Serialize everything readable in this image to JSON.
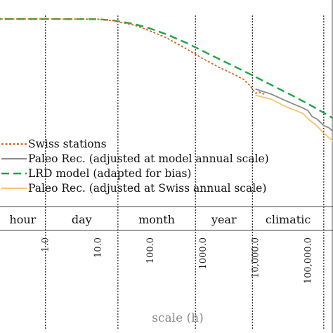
{
  "chart_data": {
    "type": "line",
    "title": "",
    "xlabel": "scale (h)",
    "ylabel": "",
    "x_scale": "log",
    "xlim": [
      0.1,
      300000
    ],
    "ylim": [
      0,
      1
    ],
    "x_ticks": [
      "1.0",
      "10.0",
      "100.0",
      "1000.0",
      "10,000.0",
      "100,000.0"
    ],
    "x_tick_values": [
      1,
      10,
      100,
      1000,
      10000,
      100000
    ],
    "x_tick_extra": "1.1",
    "scale_bands": [
      "hour",
      "day",
      "month",
      "year",
      "climatic"
    ],
    "scale_band_bounds": [
      1,
      24,
      720,
      8760,
      200000
    ],
    "legend_position": "upper panel, below curves",
    "series": [
      {
        "name": "Swiss stations",
        "color": "#d2691e",
        "dash": "dotted",
        "x": [
          0.1,
          1,
          10,
          20,
          50,
          100,
          200,
          500,
          1000,
          2000,
          4000,
          6000,
          8000,
          10000,
          12000,
          15000
        ],
        "y": [
          0.953,
          0.953,
          0.952,
          0.945,
          0.925,
          0.899,
          0.869,
          0.818,
          0.776,
          0.738,
          0.705,
          0.683,
          0.654,
          0.622,
          0.627,
          0.617
        ]
      },
      {
        "name": "Paleo Rec. (adjusted at model annual scale)",
        "color": "#8c8c8c",
        "dash": "solid",
        "x": [
          10000,
          20000,
          40000,
          80000,
          100000,
          120000,
          150000,
          200000,
          250000,
          300000
        ],
        "y": [
          0.641,
          0.618,
          0.586,
          0.556,
          0.545,
          0.518,
          0.506,
          0.478,
          0.468,
          0.452
        ]
      },
      {
        "name": "LRD model (adapted for bias)",
        "color": "#21a24a",
        "dash": "dashed",
        "x": [
          0.1,
          1,
          10,
          20,
          50,
          100,
          200,
          500,
          1000,
          2000,
          5000,
          10000,
          20000,
          50000,
          100000,
          200000,
          300000
        ],
        "y": [
          0.953,
          0.953,
          0.952,
          0.946,
          0.93,
          0.91,
          0.885,
          0.845,
          0.81,
          0.775,
          0.73,
          0.695,
          0.659,
          0.612,
          0.575,
          0.535,
          0.51
        ]
      },
      {
        "name": "Paleo Rec. (adjusted at Swiss annual scale)",
        "color": "#f5c46b",
        "dash": "solid",
        "x": [
          10000,
          20000,
          40000,
          80000,
          100000,
          150000,
          200000,
          300000
        ],
        "y": [
          0.613,
          0.595,
          0.56,
          0.532,
          0.509,
          0.475,
          0.444,
          0.408
        ]
      }
    ]
  }
}
